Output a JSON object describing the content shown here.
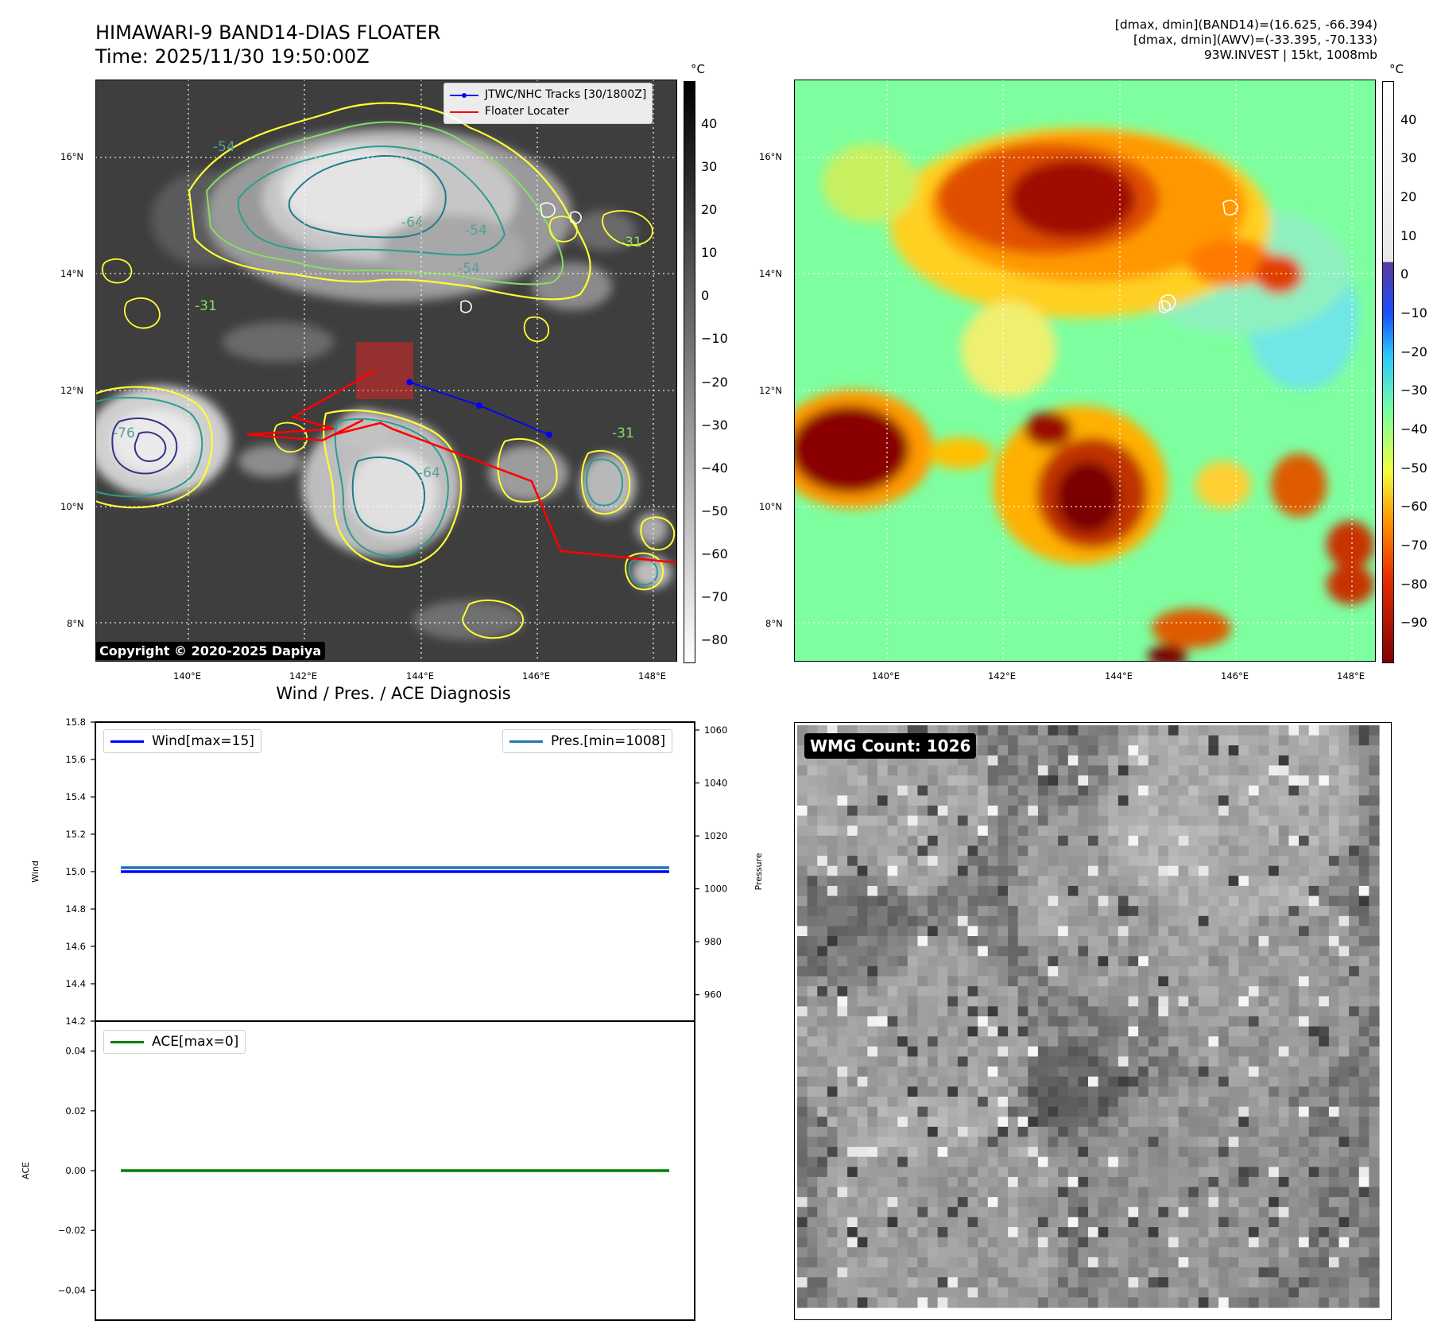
{
  "header": {
    "title_line1": "HIMAWARI-9 BAND14-DIAS FLOATER",
    "title_line2": "Time: 2025/11/30 19:50:00Z",
    "stats_line1": "[dmax, dmin](BAND14)=(16.625, -66.394)",
    "stats_line2": "[dmax, dmin](AWV)=(-33.395, -70.133)",
    "stats_line3": "93W.INVEST | 15kt, 1008mb"
  },
  "map_left": {
    "legend_tracks": "JTWC/NHC Tracks [30/1800Z]",
    "legend_locater": "Floater Locater",
    "copyright": "Copyright © 2020-2025 Dapiya",
    "contour_labels": [
      "-54",
      "-64",
      "-54",
      "-54",
      "-31",
      "-31",
      "-76",
      "-64",
      "-31"
    ],
    "colorbar_unit": "°C",
    "colorbar_ticks": [
      "40",
      "30",
      "20",
      "10",
      "0",
      "−10",
      "−20",
      "−30",
      "−40",
      "−50",
      "−60",
      "−70",
      "−80"
    ]
  },
  "map_right": {
    "colorbar_unit": "°C",
    "colorbar_ticks": [
      "40",
      "30",
      "20",
      "10",
      "0",
      "−10",
      "−20",
      "−30",
      "−40",
      "−50",
      "−60",
      "−70",
      "−80",
      "−90"
    ]
  },
  "axes_geo": {
    "lat_ticks": [
      "16°N",
      "14°N",
      "12°N",
      "10°N",
      "8°N"
    ],
    "lon_ticks": [
      "140°E",
      "142°E",
      "144°E",
      "146°E",
      "148°E"
    ]
  },
  "diagnosis": {
    "subtitle": "Wind / Pres. / ACE Diagnosis",
    "wind_ylabel": "Wind",
    "pres_ylabel": "Pressure",
    "ace_ylabel": "ACE",
    "wind_legend": "Wind[max=15]",
    "pres_legend": "Pres.[min=1008]",
    "ace_legend": "ACE[max=0]",
    "wind_ticks": [
      "15.8",
      "15.6",
      "15.4",
      "15.2",
      "15.0",
      "14.8",
      "14.6",
      "14.4",
      "14.2"
    ],
    "pres_ticks": [
      "1060",
      "1040",
      "1020",
      "1000",
      "980",
      "960"
    ],
    "ace_ticks": [
      "0.04",
      "0.02",
      "0.00",
      "−0.02",
      "−0.04"
    ]
  },
  "wmg": {
    "label": "WMG Count: 1026"
  },
  "colors": {
    "wind": "#0000ff",
    "pressure": "#1f77b4",
    "ace": "#008000",
    "track": "#0000ff",
    "locater": "#ff0000"
  },
  "chart_data": [
    {
      "type": "heatmap",
      "title": "HIMAWARI-9 BAND14-DIAS FLOATER",
      "xlabel": "",
      "ylabel": "",
      "xlim": [
        138.4,
        148.4
      ],
      "ylim": [
        7.4,
        17.4
      ],
      "colorscale": "gray",
      "colorbar_range": [
        -85,
        50
      ],
      "series": [
        {
          "name": "JTWC/NHC Tracks [30/1800Z]",
          "x": [
            143.8,
            145.0,
            146.2
          ],
          "y": [
            12.2,
            11.8,
            11.3
          ]
        },
        {
          "name": "Floater Locater",
          "x": [
            143.2,
            141.8,
            142.5,
            141.0,
            142.3,
            143.0,
            142.5,
            143.3,
            143.5,
            145.9,
            146.4,
            148.4
          ],
          "y": [
            12.4,
            11.6,
            11.4,
            11.3,
            11.2,
            11.55,
            11.3,
            11.5,
            11.4,
            10.5,
            9.3,
            9.1
          ]
        }
      ]
    },
    {
      "type": "heatmap",
      "title": "",
      "xlim": [
        138.4,
        148.4
      ],
      "ylim": [
        7.4,
        17.4
      ],
      "colorscale": "jet",
      "colorbar_range": [
        -100,
        50
      ]
    },
    {
      "type": "line",
      "title": "Wind / Pres. / ACE Diagnosis",
      "series": [
        {
          "name": "Wind[max=15]",
          "x": [
            0,
            1
          ],
          "y": [
            15,
            15
          ]
        },
        {
          "name": "Pres.[min=1008]",
          "x": [
            0,
            1
          ],
          "y": [
            1008,
            1008
          ]
        }
      ],
      "ylim": [
        14.2,
        15.8
      ],
      "y2lim": [
        950,
        1063
      ]
    },
    {
      "type": "line",
      "series": [
        {
          "name": "ACE[max=0]",
          "x": [
            0,
            1
          ],
          "y": [
            0,
            0
          ]
        }
      ],
      "ylim": [
        -0.05,
        0.05
      ]
    },
    {
      "type": "heatmap",
      "title": "WMG Count: 1026",
      "colorscale": "gray"
    }
  ]
}
